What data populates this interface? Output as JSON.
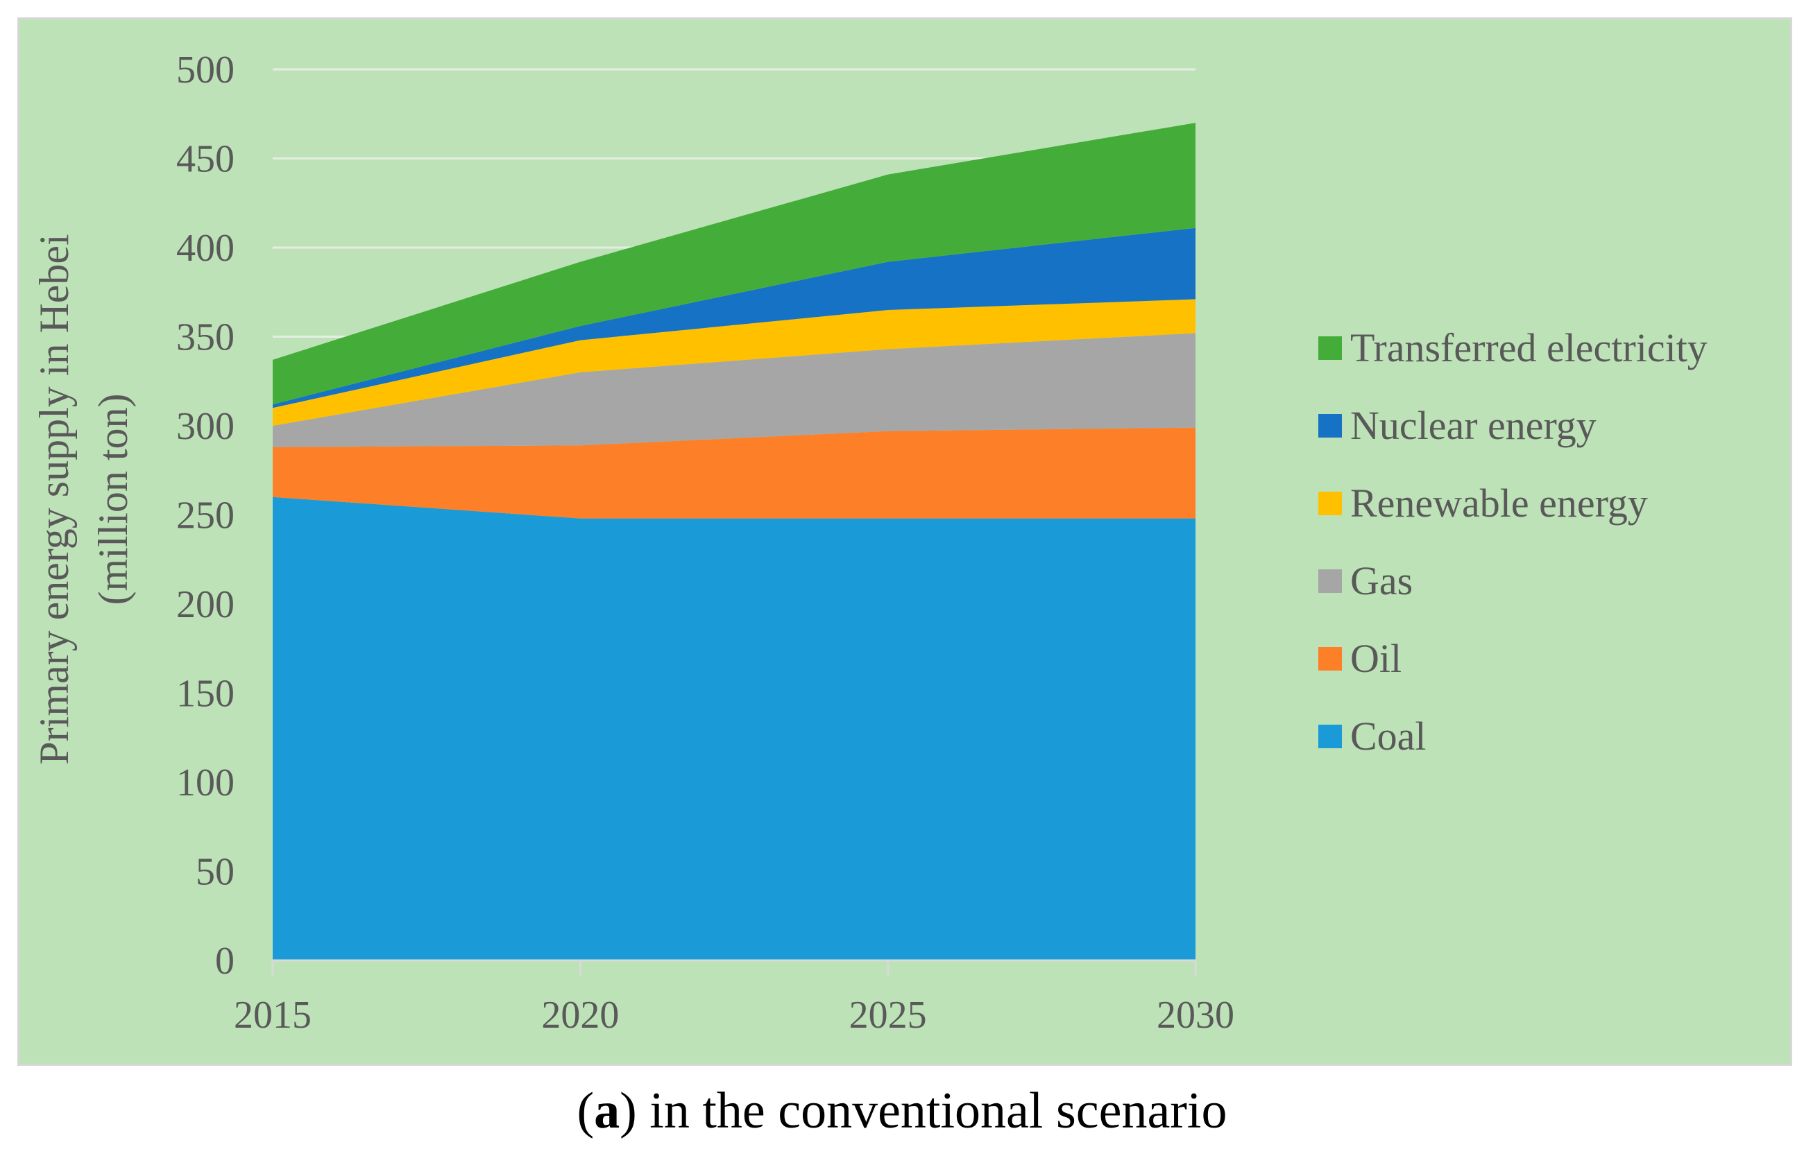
{
  "caption": {
    "open": "(",
    "letter": "a",
    "rest": ") in the conventional scenario"
  },
  "chart_data": {
    "type": "area",
    "stacked": true,
    "x": [
      "2015",
      "2020",
      "2025",
      "2030"
    ],
    "ylabel_line1": "Primary energy supply in Hebei",
    "ylabel_line2": "(million ton)",
    "xlabel": "",
    "ylim": [
      0,
      500
    ],
    "yticks": [
      "0",
      "50",
      "100",
      "150",
      "200",
      "250",
      "300",
      "350",
      "400",
      "450",
      "500"
    ],
    "grid": true,
    "legend_position": "right",
    "series": [
      {
        "name": "Coal",
        "color": "#1a9bd7",
        "values": [
          260,
          248,
          248,
          248
        ]
      },
      {
        "name": "Oil",
        "color": "#fd7f27",
        "values": [
          28,
          41,
          49,
          51
        ]
      },
      {
        "name": "Gas",
        "color": "#a6a6a6",
        "values": [
          12,
          41,
          46,
          53
        ]
      },
      {
        "name": "Renewable energy",
        "color": "#ffc000",
        "values": [
          10,
          18,
          22,
          19
        ]
      },
      {
        "name": "Nuclear energy",
        "color": "#1572c4",
        "values": [
          2,
          8,
          27,
          40
        ]
      },
      {
        "name": "Transferred electricity",
        "color": "#44ad3a",
        "values": [
          25,
          36,
          49,
          59
        ]
      }
    ]
  }
}
